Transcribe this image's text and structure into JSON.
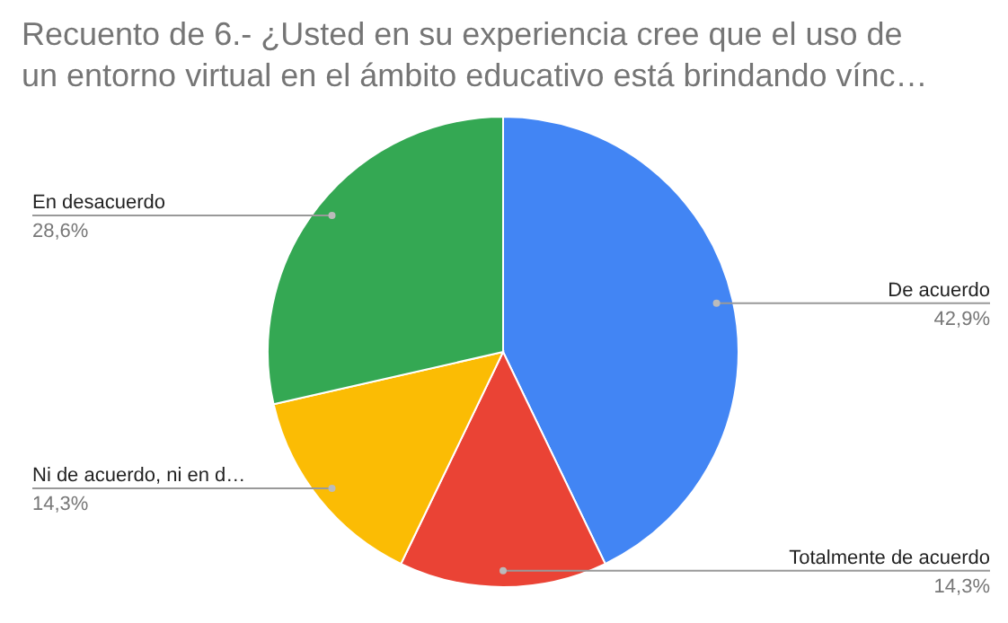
{
  "chart_data": {
    "type": "pie",
    "title": "Recuento de 6.-  ¿Usted en su experiencia cree que el uso de un entorno virtual en el ámbito educativo está brindando vínc…",
    "categories": [
      "De acuerdo",
      "Totalmente de acuerdo",
      "Ni de acuerdo, ni en d…",
      "En desacuerdo"
    ],
    "values": [
      42.9,
      14.3,
      14.3,
      28.6
    ],
    "value_labels": [
      "42,9%",
      "14,3%",
      "14,3%",
      "28,6%"
    ],
    "colors": [
      "#4285f4",
      "#ea4335",
      "#fbbc04",
      "#34a853"
    ],
    "legend": false
  }
}
